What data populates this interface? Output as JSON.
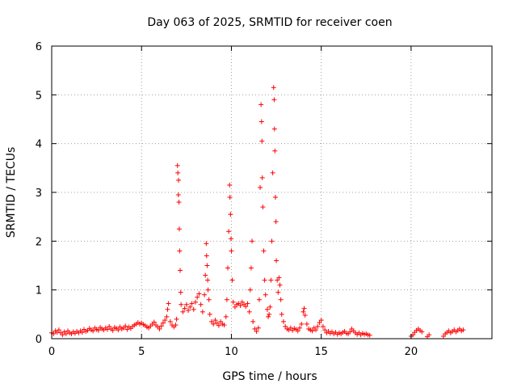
{
  "chart_data": {
    "type": "scatter",
    "title": "Day 063 of 2025, SRMTID for receiver coen",
    "xlabel": "GPS time / hours",
    "ylabel": "SRMTID / TECUs",
    "xlim": [
      0,
      24.5
    ],
    "ylim": [
      0,
      6
    ],
    "x_ticks": [
      "0",
      "5",
      "10",
      "15",
      "20"
    ],
    "x_tick_values": [
      0,
      5,
      10,
      15,
      20
    ],
    "y_ticks": [
      "0",
      "1",
      "2",
      "3",
      "4",
      "5",
      "6"
    ],
    "y_tick_values": [
      0,
      1,
      2,
      3,
      4,
      5,
      6
    ],
    "grid": true,
    "marker": "+",
    "point_color": "#ff0000",
    "series": [
      {
        "name": "SRMTID",
        "points": [
          [
            0.0,
            0.12
          ],
          [
            0.1,
            0.1
          ],
          [
            0.2,
            0.16
          ],
          [
            0.3,
            0.13
          ],
          [
            0.4,
            0.18
          ],
          [
            0.5,
            0.12
          ],
          [
            0.6,
            0.08
          ],
          [
            0.7,
            0.14
          ],
          [
            0.8,
            0.1
          ],
          [
            0.9,
            0.16
          ],
          [
            1.0,
            0.12
          ],
          [
            1.1,
            0.1
          ],
          [
            1.2,
            0.14
          ],
          [
            1.3,
            0.11
          ],
          [
            1.4,
            0.15
          ],
          [
            1.5,
            0.12
          ],
          [
            1.6,
            0.16
          ],
          [
            1.7,
            0.13
          ],
          [
            1.8,
            0.19
          ],
          [
            1.9,
            0.15
          ],
          [
            2.0,
            0.17
          ],
          [
            2.1,
            0.21
          ],
          [
            2.2,
            0.18
          ],
          [
            2.3,
            0.16
          ],
          [
            2.4,
            0.22
          ],
          [
            2.5,
            0.19
          ],
          [
            2.6,
            0.17
          ],
          [
            2.7,
            0.23
          ],
          [
            2.8,
            0.2
          ],
          [
            2.9,
            0.18
          ],
          [
            3.0,
            0.22
          ],
          [
            3.1,
            0.19
          ],
          [
            3.2,
            0.25
          ],
          [
            3.3,
            0.2
          ],
          [
            3.4,
            0.17
          ],
          [
            3.5,
            0.23
          ],
          [
            3.6,
            0.21
          ],
          [
            3.7,
            0.18
          ],
          [
            3.8,
            0.24
          ],
          [
            3.9,
            0.2
          ],
          [
            4.0,
            0.22
          ],
          [
            4.1,
            0.26
          ],
          [
            4.2,
            0.19
          ],
          [
            4.3,
            0.24
          ],
          [
            4.4,
            0.21
          ],
          [
            4.5,
            0.25
          ],
          [
            4.6,
            0.28
          ],
          [
            4.7,
            0.3
          ],
          [
            4.8,
            0.33
          ],
          [
            4.9,
            0.3
          ],
          [
            5.0,
            0.32
          ],
          [
            5.1,
            0.29
          ],
          [
            5.2,
            0.27
          ],
          [
            5.3,
            0.24
          ],
          [
            5.4,
            0.22
          ],
          [
            5.5,
            0.26
          ],
          [
            5.6,
            0.3
          ],
          [
            5.7,
            0.34
          ],
          [
            5.8,
            0.28
          ],
          [
            5.9,
            0.24
          ],
          [
            6.0,
            0.2
          ],
          [
            6.1,
            0.26
          ],
          [
            6.2,
            0.32
          ],
          [
            6.3,
            0.38
          ],
          [
            6.4,
            0.45
          ],
          [
            6.45,
            0.6
          ],
          [
            6.5,
            0.72
          ],
          [
            6.6,
            0.35
          ],
          [
            6.7,
            0.28
          ],
          [
            6.8,
            0.24
          ],
          [
            6.9,
            0.28
          ],
          [
            6.95,
            0.4
          ],
          [
            7.0,
            3.55
          ],
          [
            7.02,
            3.4
          ],
          [
            7.05,
            2.95
          ],
          [
            7.06,
            3.25
          ],
          [
            7.08,
            2.8
          ],
          [
            7.1,
            2.25
          ],
          [
            7.12,
            1.8
          ],
          [
            7.15,
            1.4
          ],
          [
            7.18,
            0.95
          ],
          [
            7.2,
            0.7
          ],
          [
            7.3,
            0.55
          ],
          [
            7.4,
            0.62
          ],
          [
            7.5,
            0.7
          ],
          [
            7.6,
            0.58
          ],
          [
            7.7,
            0.65
          ],
          [
            7.8,
            0.72
          ],
          [
            7.9,
            0.6
          ],
          [
            8.0,
            0.75
          ],
          [
            8.1,
            0.85
          ],
          [
            8.2,
            0.92
          ],
          [
            8.3,
            0.7
          ],
          [
            8.4,
            0.55
          ],
          [
            8.5,
            0.9
          ],
          [
            8.55,
            1.3
          ],
          [
            8.6,
            1.95
          ],
          [
            8.62,
            1.7
          ],
          [
            8.65,
            1.5
          ],
          [
            8.68,
            1.2
          ],
          [
            8.7,
            1.0
          ],
          [
            8.75,
            0.8
          ],
          [
            8.8,
            0.5
          ],
          [
            8.9,
            0.35
          ],
          [
            9.0,
            0.3
          ],
          [
            9.1,
            0.38
          ],
          [
            9.2,
            0.32
          ],
          [
            9.3,
            0.27
          ],
          [
            9.4,
            0.35
          ],
          [
            9.5,
            0.3
          ],
          [
            9.6,
            0.28
          ],
          [
            9.7,
            0.45
          ],
          [
            9.75,
            0.8
          ],
          [
            9.8,
            1.45
          ],
          [
            9.85,
            2.2
          ],
          [
            9.9,
            3.15
          ],
          [
            9.92,
            2.9
          ],
          [
            9.95,
            2.55
          ],
          [
            9.98,
            2.05
          ],
          [
            10.0,
            1.8
          ],
          [
            10.05,
            1.2
          ],
          [
            10.1,
            0.75
          ],
          [
            10.2,
            0.65
          ],
          [
            10.3,
            0.7
          ],
          [
            10.4,
            0.72
          ],
          [
            10.5,
            0.68
          ],
          [
            10.6,
            0.75
          ],
          [
            10.7,
            0.7
          ],
          [
            10.8,
            0.66
          ],
          [
            10.9,
            0.72
          ],
          [
            11.0,
            0.55
          ],
          [
            11.05,
            1.0
          ],
          [
            11.1,
            1.45
          ],
          [
            11.15,
            2.0
          ],
          [
            11.2,
            0.35
          ],
          [
            11.3,
            0.2
          ],
          [
            11.4,
            0.15
          ],
          [
            11.5,
            0.22
          ],
          [
            11.55,
            0.8
          ],
          [
            11.6,
            3.1
          ],
          [
            11.65,
            4.8
          ],
          [
            11.68,
            4.45
          ],
          [
            11.7,
            4.05
          ],
          [
            11.72,
            3.3
          ],
          [
            11.75,
            2.7
          ],
          [
            11.8,
            1.8
          ],
          [
            11.85,
            1.2
          ],
          [
            11.9,
            0.9
          ],
          [
            12.0,
            0.6
          ],
          [
            12.05,
            0.45
          ],
          [
            12.1,
            0.5
          ],
          [
            12.15,
            0.65
          ],
          [
            12.2,
            1.2
          ],
          [
            12.25,
            2.0
          ],
          [
            12.3,
            3.4
          ],
          [
            12.35,
            5.15
          ],
          [
            12.38,
            4.9
          ],
          [
            12.4,
            4.3
          ],
          [
            12.42,
            3.85
          ],
          [
            12.45,
            2.9
          ],
          [
            12.48,
            2.4
          ],
          [
            12.5,
            1.6
          ],
          [
            12.55,
            1.2
          ],
          [
            12.6,
            0.95
          ],
          [
            12.65,
            1.25
          ],
          [
            12.7,
            1.1
          ],
          [
            12.75,
            0.8
          ],
          [
            12.8,
            0.5
          ],
          [
            12.9,
            0.35
          ],
          [
            13.0,
            0.25
          ],
          [
            13.1,
            0.2
          ],
          [
            13.2,
            0.18
          ],
          [
            13.3,
            0.22
          ],
          [
            13.4,
            0.17
          ],
          [
            13.5,
            0.21
          ],
          [
            13.6,
            0.19
          ],
          [
            13.7,
            0.16
          ],
          [
            13.8,
            0.22
          ],
          [
            13.9,
            0.3
          ],
          [
            14.0,
            0.55
          ],
          [
            14.05,
            0.62
          ],
          [
            14.1,
            0.48
          ],
          [
            14.2,
            0.3
          ],
          [
            14.3,
            0.2
          ],
          [
            14.4,
            0.18
          ],
          [
            14.5,
            0.16
          ],
          [
            14.6,
            0.22
          ],
          [
            14.7,
            0.18
          ],
          [
            14.8,
            0.25
          ],
          [
            14.9,
            0.33
          ],
          [
            15.0,
            0.38
          ],
          [
            15.1,
            0.25
          ],
          [
            15.2,
            0.18
          ],
          [
            15.3,
            0.12
          ],
          [
            15.4,
            0.15
          ],
          [
            15.5,
            0.11
          ],
          [
            15.6,
            0.14
          ],
          [
            15.7,
            0.1
          ],
          [
            15.8,
            0.13
          ],
          [
            15.9,
            0.09
          ],
          [
            16.0,
            0.12
          ],
          [
            16.1,
            0.1
          ],
          [
            16.2,
            0.13
          ],
          [
            16.3,
            0.15
          ],
          [
            16.4,
            0.11
          ],
          [
            16.5,
            0.1
          ],
          [
            16.6,
            0.14
          ],
          [
            16.7,
            0.2
          ],
          [
            16.8,
            0.16
          ],
          [
            16.9,
            0.12
          ],
          [
            17.0,
            0.09
          ],
          [
            17.1,
            0.12
          ],
          [
            17.2,
            0.08
          ],
          [
            17.3,
            0.11
          ],
          [
            17.4,
            0.09
          ],
          [
            17.5,
            0.1
          ],
          [
            17.6,
            0.08
          ],
          [
            17.7,
            0.07
          ],
          [
            20.0,
            0.05
          ],
          [
            20.1,
            0.08
          ],
          [
            20.2,
            0.13
          ],
          [
            20.3,
            0.17
          ],
          [
            20.4,
            0.2
          ],
          [
            20.5,
            0.17
          ],
          [
            20.6,
            0.14
          ],
          [
            20.9,
            0.04
          ],
          [
            21.0,
            0.08
          ],
          [
            21.8,
            0.05
          ],
          [
            21.9,
            0.1
          ],
          [
            22.0,
            0.13
          ],
          [
            22.1,
            0.16
          ],
          [
            22.2,
            0.12
          ],
          [
            22.3,
            0.15
          ],
          [
            22.4,
            0.18
          ],
          [
            22.5,
            0.14
          ],
          [
            22.6,
            0.17
          ],
          [
            22.7,
            0.2
          ],
          [
            22.8,
            0.16
          ],
          [
            22.9,
            0.18
          ]
        ]
      }
    ]
  }
}
